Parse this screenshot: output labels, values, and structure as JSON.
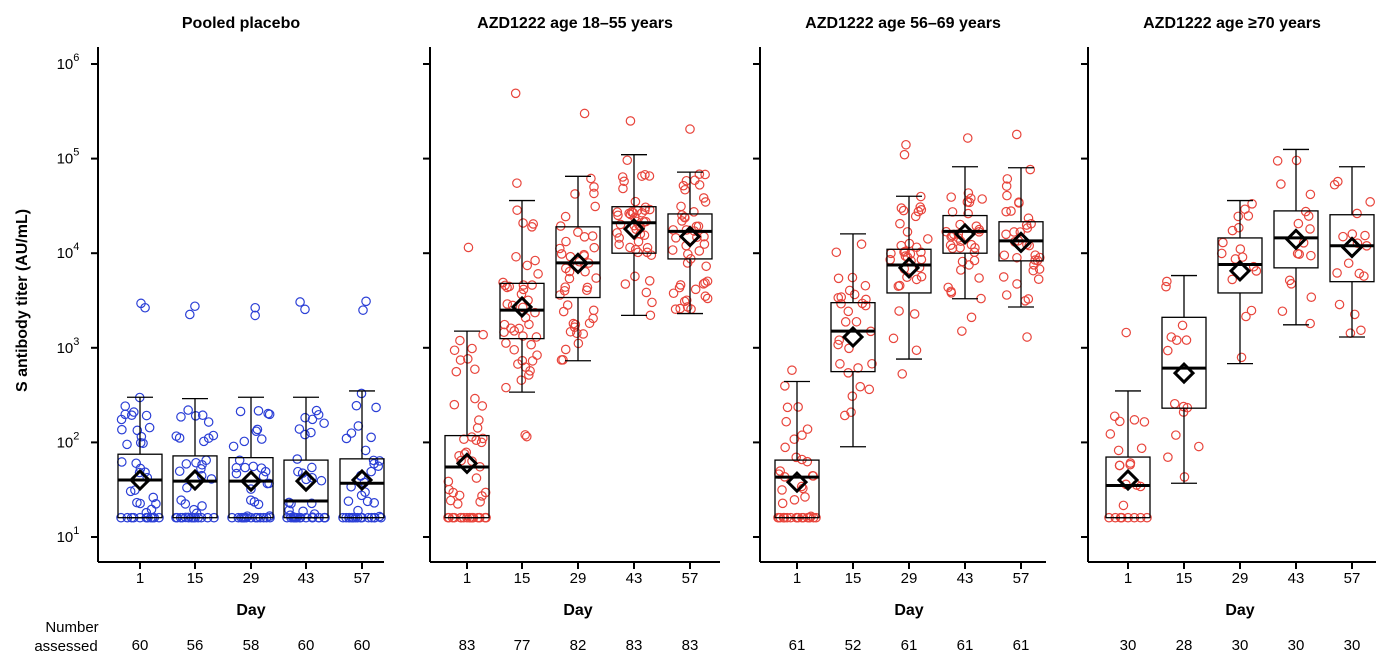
{
  "chart_data": {
    "type": "box",
    "ylabel": "S antibody titer (AU/mL)",
    "xlabel": "Day",
    "y_scale": "log",
    "ylim": [
      10,
      1000000
    ],
    "y_ticks": [
      {
        "value": 10,
        "base": "10",
        "exp": "1"
      },
      {
        "value": 100,
        "base": "10",
        "exp": "2"
      },
      {
        "value": 1000,
        "base": "10",
        "exp": "3"
      },
      {
        "value": 10000,
        "base": "10",
        "exp": "4"
      },
      {
        "value": 100000,
        "base": "10",
        "exp": "5"
      },
      {
        "value": 1000000,
        "base": "10",
        "exp": "6"
      }
    ],
    "categories": [
      "1",
      "15",
      "29",
      "43",
      "57"
    ],
    "count_label": [
      "Number",
      "assessed"
    ],
    "colors": {
      "placebo": "#2b3fd6",
      "vaccine": "#e8453c"
    },
    "panels": [
      {
        "title": "Pooled placebo",
        "color": "#2b3fd6",
        "n": [
          "60",
          "56",
          "58",
          "60",
          "60"
        ],
        "boxes": [
          {
            "whisker_low": 16,
            "q1": 16,
            "median": 40,
            "q3": 75,
            "whisker_high": 300,
            "gmt": 40,
            "outliers": [
              2650,
              2950
            ]
          },
          {
            "whisker_low": 16,
            "q1": 16,
            "median": 39,
            "q3": 72,
            "whisker_high": 290,
            "gmt": 40,
            "outliers": [
              2250,
              2750
            ]
          },
          {
            "whisker_low": 16,
            "q1": 16,
            "median": 39,
            "q3": 69,
            "whisker_high": 300,
            "gmt": 39,
            "outliers": [
              2200,
              2650
            ]
          },
          {
            "whisker_low": 16,
            "q1": 16,
            "median": 24,
            "q3": 65,
            "whisker_high": 300,
            "gmt": 39,
            "outliers": [
              2550,
              3050
            ]
          },
          {
            "whisker_low": 16,
            "q1": 16,
            "median": 37,
            "q3": 67,
            "whisker_high": 350,
            "gmt": 40,
            "outliers": [
              2500,
              3100
            ]
          }
        ]
      },
      {
        "title": "AZD1222 age 18–55 years",
        "color": "#e8453c",
        "n": [
          "83",
          "77",
          "82",
          "83",
          "83"
        ],
        "boxes": [
          {
            "whisker_low": 16,
            "q1": 16,
            "median": 55,
            "q3": 118,
            "whisker_high": 1500,
            "gmt": 60,
            "outliers": [
              11500
            ]
          },
          {
            "whisker_low": 340,
            "q1": 1250,
            "median": 2500,
            "q3": 4800,
            "whisker_high": 36000,
            "gmt": 2700,
            "outliers": [
              115,
              120,
              55000,
              490000
            ]
          },
          {
            "whisker_low": 730,
            "q1": 3400,
            "median": 7900,
            "q3": 19000,
            "whisker_high": 65000,
            "gmt": 7800,
            "outliers": [
              300000
            ]
          },
          {
            "whisker_low": 2200,
            "q1": 10000,
            "median": 21000,
            "q3": 31000,
            "whisker_high": 110000,
            "gmt": 18000,
            "outliers": [
              250000
            ]
          },
          {
            "whisker_low": 2300,
            "q1": 8700,
            "median": 17000,
            "q3": 26000,
            "whisker_high": 72000,
            "gmt": 15000,
            "outliers": [
              205000
            ]
          }
        ]
      },
      {
        "title": "AZD1222 age 56–69 years",
        "color": "#e8453c",
        "n": [
          "61",
          "52",
          "61",
          "61",
          "61"
        ],
        "boxes": [
          {
            "whisker_low": 16,
            "q1": 16,
            "median": 43,
            "q3": 65,
            "whisker_high": 440,
            "gmt": 38,
            "outliers": [
              580
            ]
          },
          {
            "whisker_low": 90,
            "q1": 560,
            "median": 1500,
            "q3": 3000,
            "whisker_high": 16000,
            "gmt": 1300,
            "outliers": []
          },
          {
            "whisker_low": 760,
            "q1": 3800,
            "median": 7500,
            "q3": 11000,
            "whisker_high": 40000,
            "gmt": 7000,
            "outliers": [
              530,
              110000,
              140000
            ]
          },
          {
            "whisker_low": 3300,
            "q1": 10000,
            "median": 17000,
            "q3": 25000,
            "whisker_high": 82000,
            "gmt": 16000,
            "outliers": [
              1500,
              2100,
              165000
            ]
          },
          {
            "whisker_low": 2700,
            "q1": 8300,
            "median": 13500,
            "q3": 21500,
            "whisker_high": 80000,
            "gmt": 13000,
            "outliers": [
              1300,
              180000
            ]
          }
        ]
      },
      {
        "title": "AZD1222 age ≥70 years",
        "color": "#e8453c",
        "n": [
          "30",
          "28",
          "30",
          "30",
          "30"
        ],
        "boxes": [
          {
            "whisker_low": 16,
            "q1": 16,
            "median": 35,
            "q3": 70,
            "whisker_high": 350,
            "gmt": 40,
            "outliers": [
              1450
            ]
          },
          {
            "whisker_low": 37,
            "q1": 230,
            "median": 610,
            "q3": 2100,
            "whisker_high": 5800,
            "gmt": 540,
            "outliers": []
          },
          {
            "whisker_low": 680,
            "q1": 3800,
            "median": 7600,
            "q3": 14500,
            "whisker_high": 36000,
            "gmt": 6500,
            "outliers": []
          },
          {
            "whisker_low": 1750,
            "q1": 7000,
            "median": 14500,
            "q3": 28000,
            "whisker_high": 125000,
            "gmt": 14000,
            "outliers": []
          },
          {
            "whisker_low": 1300,
            "q1": 5000,
            "median": 12000,
            "q3": 25500,
            "whisker_high": 82000,
            "gmt": 11500,
            "outliers": []
          }
        ]
      }
    ]
  }
}
